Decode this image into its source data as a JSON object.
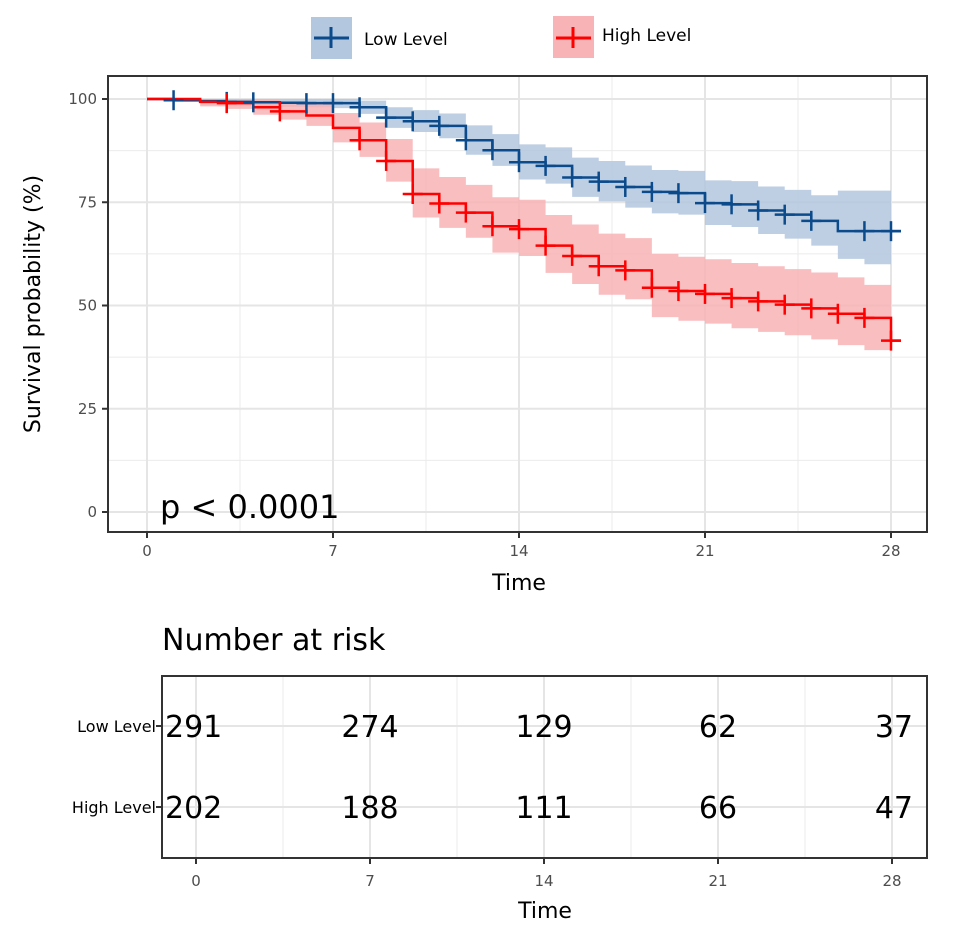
{
  "chart_data": {
    "type": "line",
    "subtype": "kaplan-meier step",
    "title": "",
    "xlabel": "Time",
    "ylabel": "Survival probability (%)",
    "xlim": [
      0,
      28
    ],
    "ylim": [
      0,
      100
    ],
    "x_ticks": [
      0,
      7,
      14,
      21,
      28
    ],
    "y_ticks": [
      0,
      25,
      50,
      75,
      100
    ],
    "grid": true,
    "legend_position": "top",
    "annotation": "p < 0.0001",
    "series": [
      {
        "name": "Low Level",
        "color": "#0b4a8b",
        "band_color": "#b3c7de",
        "x": [
          0,
          1,
          2,
          3,
          4,
          5,
          6,
          7,
          8,
          9,
          10,
          11,
          12,
          13,
          14,
          15,
          16,
          17,
          18,
          19,
          20,
          21,
          22,
          23,
          24,
          25,
          26,
          27,
          28
        ],
        "values": [
          100,
          99.7,
          99.5,
          99.3,
          99.2,
          99.1,
          99,
          99,
          98,
          95.5,
          94.6,
          93.5,
          90,
          87.6,
          84.7,
          83.8,
          81,
          80,
          78.7,
          77.5,
          77.2,
          74.8,
          74.5,
          73,
          72,
          70.5,
          68,
          68,
          68
        ],
        "lower": [
          100,
          99.3,
          99,
          98.5,
          98.3,
          98.1,
          98,
          97.8,
          96.4,
          93,
          92,
          90.5,
          86.5,
          83.8,
          80.5,
          79.5,
          76.3,
          75.2,
          73.7,
          72.3,
          72,
          69.5,
          69,
          67.3,
          66.2,
          64.5,
          61.3,
          60,
          60
        ],
        "upper": [
          100,
          100,
          100,
          100,
          100,
          100,
          100,
          100,
          99.6,
          98,
          97.3,
          96.5,
          93.6,
          91.5,
          89,
          88.3,
          85.8,
          85,
          83.9,
          82.8,
          82.6,
          80.3,
          80.1,
          78.8,
          78,
          76.7,
          77.8,
          77.8,
          77.8
        ],
        "censor_x": [
          1,
          3,
          4,
          6,
          7,
          8,
          9,
          10,
          11,
          12,
          13,
          14,
          15,
          16,
          17,
          18,
          19,
          20,
          21,
          22,
          23,
          24,
          25,
          27,
          28
        ]
      },
      {
        "name": "High Level",
        "color": "#ff0000",
        "band_color": "#f7b3b5",
        "x": [
          0,
          1,
          2,
          3,
          4,
          5,
          6,
          7,
          8,
          9,
          10,
          11,
          12,
          13,
          14,
          15,
          16,
          17,
          18,
          19,
          20,
          21,
          22,
          23,
          24,
          25,
          26,
          27,
          28
        ],
        "values": [
          100,
          100,
          99.3,
          99,
          98,
          97,
          96,
          93,
          90,
          85,
          77,
          74.7,
          72.5,
          69.2,
          68.5,
          64.5,
          62,
          59.5,
          58.5,
          54.3,
          53.5,
          52.8,
          51.8,
          51,
          50.2,
          49.3,
          48,
          47,
          41.5
        ],
        "lower": [
          100,
          100,
          98.2,
          97.6,
          96.2,
          95,
          93.5,
          89.5,
          86,
          80,
          71.3,
          68.8,
          66.4,
          62.8,
          62,
          57.9,
          55.2,
          52.6,
          51.5,
          47.2,
          46.3,
          45.6,
          44.5,
          43.6,
          42.8,
          41.8,
          40.4,
          39.2,
          39.2
        ],
        "upper": [
          100,
          100,
          100,
          100,
          99.9,
          99.4,
          98.8,
          96.6,
          94.3,
          90.3,
          83.2,
          81.1,
          79.2,
          76.2,
          75.6,
          71.9,
          69.6,
          67.4,
          66.3,
          62.5,
          61.8,
          61.2,
          60.3,
          59.5,
          58.8,
          58,
          56.8,
          55,
          55
        ],
        "censor_x": [
          3,
          5,
          8,
          9,
          10,
          11,
          12,
          13,
          14,
          15,
          16,
          17,
          18,
          19,
          20,
          21,
          22,
          23,
          24,
          25,
          26,
          27,
          28
        ]
      }
    ],
    "risk_table": {
      "title": "Number at risk",
      "xlabel": "Time",
      "times": [
        0,
        7,
        14,
        21,
        28
      ],
      "rows": [
        {
          "label": "Low Level",
          "values": [
            291,
            274,
            129,
            62,
            37
          ]
        },
        {
          "label": "High Level",
          "values": [
            202,
            188,
            111,
            66,
            47
          ]
        }
      ]
    }
  }
}
